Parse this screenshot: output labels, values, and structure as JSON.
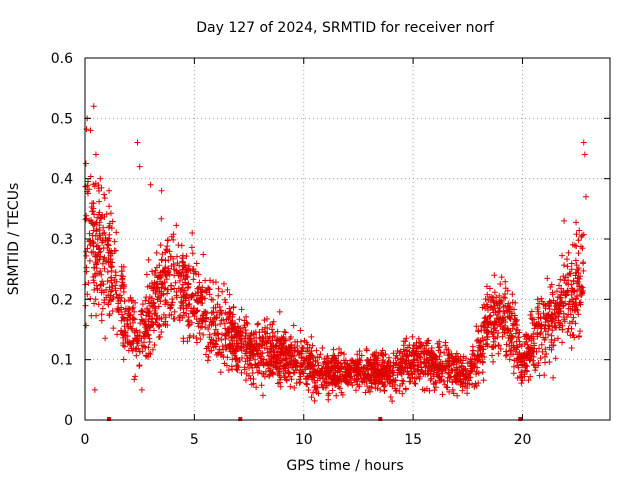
{
  "chart_data": {
    "type": "scatter",
    "title": "Day 127 of 2024, SRMTID for receiver norf",
    "xlabel": "GPS time / hours",
    "ylabel": "SRMTID / TECUs",
    "xlim": [
      0,
      24
    ],
    "ylim": [
      0,
      0.6
    ],
    "xticks": [
      0,
      5,
      10,
      15,
      20
    ],
    "yticks": [
      0,
      0.1,
      0.2,
      0.3,
      0.4,
      0.5,
      0.6
    ],
    "xtick_labels": [
      "0",
      "5",
      "10",
      "15",
      "20"
    ],
    "ytick_labels": [
      "0",
      "0.1",
      "0.2",
      "0.3",
      "0.4",
      "0.5",
      "0.6"
    ],
    "grid": true,
    "marker": "+",
    "color": "#e00000",
    "series": [
      {
        "name": "SRMTID",
        "profile_x": [
          0.0,
          0.5,
          1.0,
          1.5,
          2.0,
          2.5,
          3.0,
          3.5,
          4.0,
          4.5,
          5.0,
          5.5,
          6.0,
          6.5,
          7.0,
          7.5,
          8.0,
          8.5,
          9.0,
          9.5,
          10.0,
          10.5,
          11.0,
          11.5,
          12.0,
          12.5,
          13.0,
          13.5,
          14.0,
          14.5,
          15.0,
          15.5,
          16.0,
          16.5,
          17.0,
          17.5,
          18.0,
          18.5,
          19.0,
          19.5,
          20.0,
          20.5,
          21.0,
          21.5,
          22.0,
          22.5,
          22.8
        ],
        "profile_y": [
          0.3,
          0.28,
          0.26,
          0.22,
          0.15,
          0.14,
          0.18,
          0.22,
          0.24,
          0.22,
          0.2,
          0.18,
          0.16,
          0.15,
          0.13,
          0.12,
          0.11,
          0.11,
          0.11,
          0.1,
          0.1,
          0.08,
          0.08,
          0.08,
          0.08,
          0.08,
          0.08,
          0.08,
          0.08,
          0.09,
          0.1,
          0.1,
          0.09,
          0.09,
          0.08,
          0.07,
          0.12,
          0.16,
          0.17,
          0.16,
          0.09,
          0.13,
          0.15,
          0.18,
          0.2,
          0.22,
          0.24
        ],
        "spread": [
          0.12,
          0.1,
          0.08,
          0.07,
          0.05,
          0.05,
          0.06,
          0.07,
          0.07,
          0.07,
          0.06,
          0.06,
          0.05,
          0.05,
          0.045,
          0.04,
          0.04,
          0.04,
          0.04,
          0.035,
          0.035,
          0.03,
          0.03,
          0.025,
          0.025,
          0.025,
          0.025,
          0.025,
          0.03,
          0.03,
          0.035,
          0.035,
          0.03,
          0.03,
          0.03,
          0.03,
          0.05,
          0.05,
          0.05,
          0.05,
          0.03,
          0.05,
          0.05,
          0.06,
          0.06,
          0.07,
          0.08
        ],
        "outliers": [
          {
            "x": 0.1,
            "y": 0.5
          },
          {
            "x": 0.25,
            "y": 0.48
          },
          {
            "x": 0.4,
            "y": 0.52
          },
          {
            "x": 0.5,
            "y": 0.44
          },
          {
            "x": 0.7,
            "y": 0.4
          },
          {
            "x": 1.1,
            "y": 0.38
          },
          {
            "x": 2.4,
            "y": 0.46
          },
          {
            "x": 2.5,
            "y": 0.42
          },
          {
            "x": 2.6,
            "y": 0.05
          },
          {
            "x": 3.0,
            "y": 0.39
          },
          {
            "x": 3.5,
            "y": 0.38
          },
          {
            "x": 4.9,
            "y": 0.31
          },
          {
            "x": 22.8,
            "y": 0.46
          },
          {
            "x": 22.85,
            "y": 0.44
          },
          {
            "x": 22.9,
            "y": 0.37
          },
          {
            "x": 21.9,
            "y": 0.33
          },
          {
            "x": 21.4,
            "y": 0.07
          },
          {
            "x": 0.45,
            "y": 0.05
          }
        ],
        "points_per_hour": 130
      }
    ],
    "gap_markers_x": [
      1.1,
      7.1,
      13.5,
      19.9
    ]
  }
}
